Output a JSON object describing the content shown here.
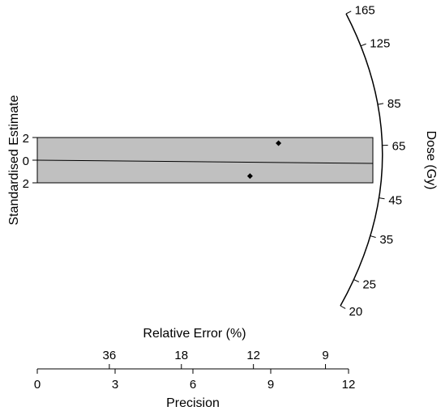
{
  "chart_data": {
    "type": "radial",
    "y_label": "Standardised Estimate",
    "y_ticks": [
      2,
      0,
      -2
    ],
    "y_tick_labels": [
      "2",
      "0",
      "2"
    ],
    "band": [
      -2,
      2
    ],
    "precision_label": "Precision",
    "precision_ticks": [
      "0",
      "3",
      "6",
      "9",
      "12"
    ],
    "precision_lim": [
      0,
      12
    ],
    "relative_error_label": "Relative Error (%)",
    "relative_error_ticks": [
      "36",
      "18",
      "12",
      "9"
    ],
    "dose_label": "Dose (Gy)",
    "dose_ticks": [
      "165",
      "125",
      "85",
      "65",
      "45",
      "35",
      "25",
      "20"
    ],
    "points": [
      {
        "precision": 9.3,
        "z": 1.5
      },
      {
        "precision": 8.2,
        "z": -1.4
      }
    ]
  }
}
